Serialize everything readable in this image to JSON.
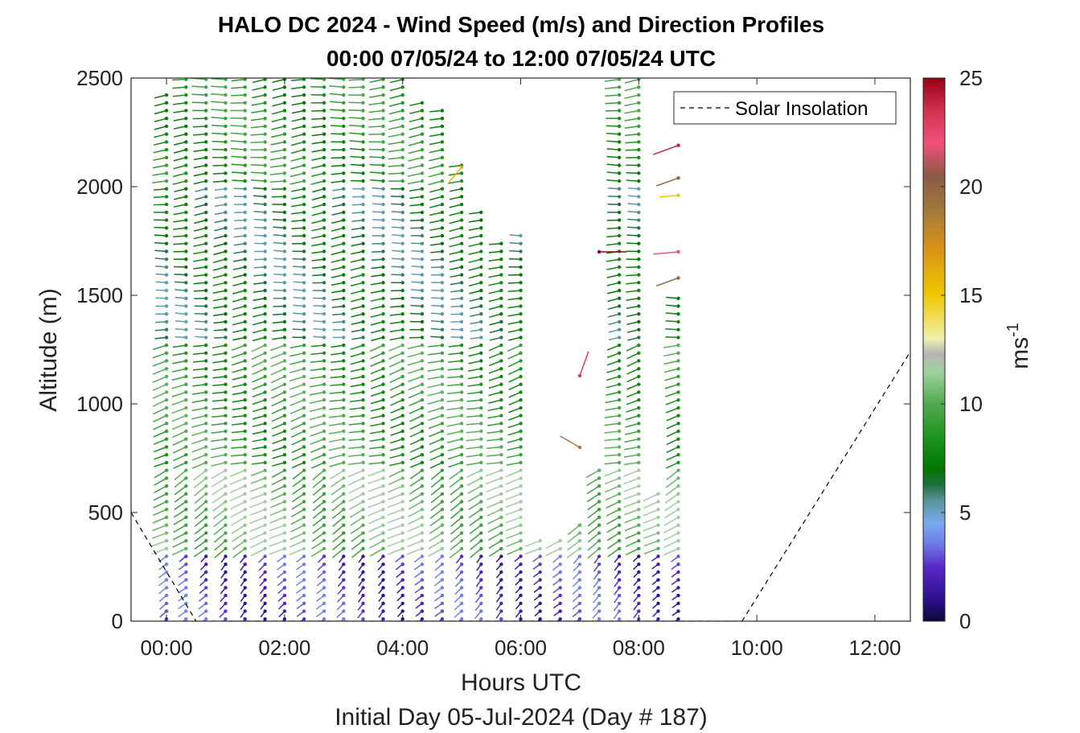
{
  "chart_data": {
    "type": "wind-barb-profile",
    "title": "HALO DC 2024 - Wind Speed (m/s) and Direction Profiles",
    "subtitle": "00:00 07/05/24 to 12:00 07/05/24  UTC",
    "xlabel": "Hours UTC",
    "xlabel2": "Initial Day 05-Jul-2024 (Day # 187)",
    "ylabel": "Altitude (m)",
    "xlim": [
      -0.6,
      12.6
    ],
    "ylim": [
      0,
      2500
    ],
    "x_ticks": [
      0,
      2,
      4,
      6,
      8,
      10,
      12
    ],
    "x_tick_labels": [
      "00:00",
      "02:00",
      "04:00",
      "06:00",
      "08:00",
      "10:00",
      "12:00"
    ],
    "y_ticks": [
      0,
      500,
      1000,
      1500,
      2000,
      2500
    ],
    "y_tick_labels": [
      "0",
      "500",
      "1000",
      "1500",
      "2000",
      "2500"
    ],
    "colorbar": {
      "label": "ms",
      "label_superscript": "-1",
      "range": [
        0,
        25
      ],
      "ticks": [
        0,
        5,
        10,
        15,
        20,
        25
      ],
      "tick_labels": [
        "0",
        "5",
        "10",
        "15",
        "20",
        "25"
      ],
      "color_stops": [
        [
          0,
          "#0a0a3c"
        ],
        [
          1,
          "#2d0f8c"
        ],
        [
          2.5,
          "#5a28c8"
        ],
        [
          3.5,
          "#6e78e6"
        ],
        [
          4.5,
          "#78aaf0"
        ],
        [
          5.5,
          "#5a96a0"
        ],
        [
          6.3,
          "#1e6e3c"
        ],
        [
          7,
          "#007800"
        ],
        [
          8.5,
          "#1e961e"
        ],
        [
          10,
          "#50aa50"
        ],
        [
          11.5,
          "#a0d2a0"
        ],
        [
          12.3,
          "#b4b4b4"
        ],
        [
          13,
          "#f0f0aa"
        ],
        [
          15,
          "#f0c800"
        ],
        [
          17,
          "#dc9614"
        ],
        [
          19,
          "#a0783c"
        ],
        [
          20.5,
          "#8c5a46"
        ],
        [
          22,
          "#f05078"
        ],
        [
          23.5,
          "#d23250"
        ],
        [
          25,
          "#960014"
        ]
      ]
    },
    "legend": {
      "entries": [
        "Solar Insolation"
      ],
      "placement": "top-right"
    },
    "solar_insolation": {
      "style": "dashed",
      "x": [
        -0.6,
        0.5,
        9.75,
        12.6
      ],
      "y": [
        500,
        0,
        0,
        1240
      ]
    },
    "profile_times_hours": [
      0,
      0.33,
      0.67,
      1,
      1.33,
      1.67,
      2,
      2.33,
      2.67,
      3,
      3.33,
      3.67,
      4,
      4.33,
      4.67,
      5,
      5.33,
      5.67,
      6,
      6.33,
      6.67,
      7,
      7.33,
      7.67,
      8,
      8.33,
      8.67
    ],
    "profile_top_altitude_m": [
      2450,
      2500,
      2500,
      2500,
      2500,
      2500,
      2500,
      2500,
      2500,
      2500,
      2500,
      2500,
      2500,
      2400,
      2350,
      2100,
      1900,
      1750,
      1800,
      370,
      400,
      450,
      700,
      2500,
      2500,
      600,
      1500
    ],
    "gate_spacing_m": 36,
    "wind_speed_ms_by_layer": [
      {
        "altitude_range_m": [
          0,
          300
        ],
        "speed_ms": 2.5,
        "direction_deg": 225
      },
      {
        "altitude_range_m": [
          300,
          700
        ],
        "speed_ms": 10.5,
        "direction_deg": 240
      },
      {
        "altitude_range_m": [
          700,
          1300
        ],
        "speed_ms": 9,
        "direction_deg": 255
      },
      {
        "altitude_range_m": [
          1300,
          2000
        ],
        "speed_ms": 6.5,
        "direction_deg": 265
      },
      {
        "altitude_range_m": [
          2000,
          2500
        ],
        "speed_ms": 8.5,
        "direction_deg": 265
      }
    ],
    "isolated_points": [
      {
        "time_hours": 7.33,
        "altitude_m": 1700,
        "speed_ms": 25,
        "direction_deg": 90
      },
      {
        "time_hours": 8.67,
        "altitude_m": 2190,
        "speed_ms": 24,
        "direction_deg": 250
      },
      {
        "time_hours": 8.67,
        "altitude_m": 2040,
        "speed_ms": 20,
        "direction_deg": 250
      },
      {
        "time_hours": 8.67,
        "altitude_m": 1960,
        "speed_ms": 15,
        "direction_deg": 265
      },
      {
        "time_hours": 8.67,
        "altitude_m": 1700,
        "speed_ms": 22,
        "direction_deg": 265
      },
      {
        "time_hours": 8.67,
        "altitude_m": 1580,
        "speed_ms": 20,
        "direction_deg": 250
      },
      {
        "time_hours": 5,
        "altitude_m": 2090,
        "speed_ms": 16,
        "direction_deg": 220
      },
      {
        "time_hours": 7,
        "altitude_m": 1130,
        "speed_ms": 23,
        "direction_deg": 20
      },
      {
        "time_hours": 7,
        "altitude_m": 800,
        "speed_ms": 19,
        "direction_deg": 300
      }
    ]
  }
}
